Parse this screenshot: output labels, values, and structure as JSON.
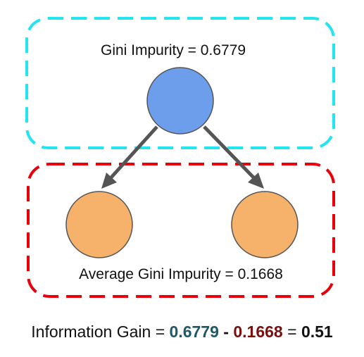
{
  "parent_box": {
    "label": "Gini Impurity = 0.6779",
    "border_color": "#22e5f0"
  },
  "children_box": {
    "label": "Average Gini Impurity = 0.1668",
    "border_color": "#e8000b"
  },
  "nodes": {
    "parent_fill": "#6d9eeb",
    "child_fill": "#f6b26b",
    "stroke": "#555555"
  },
  "information_gain": {
    "prefix": "Information Gain = ",
    "parent_value": "0.6779",
    "parent_color": "#1f5868",
    "minus": " - ",
    "child_value": "0.1668",
    "child_color": "#7a0f0f",
    "equals": " = ",
    "result": "0.51"
  }
}
